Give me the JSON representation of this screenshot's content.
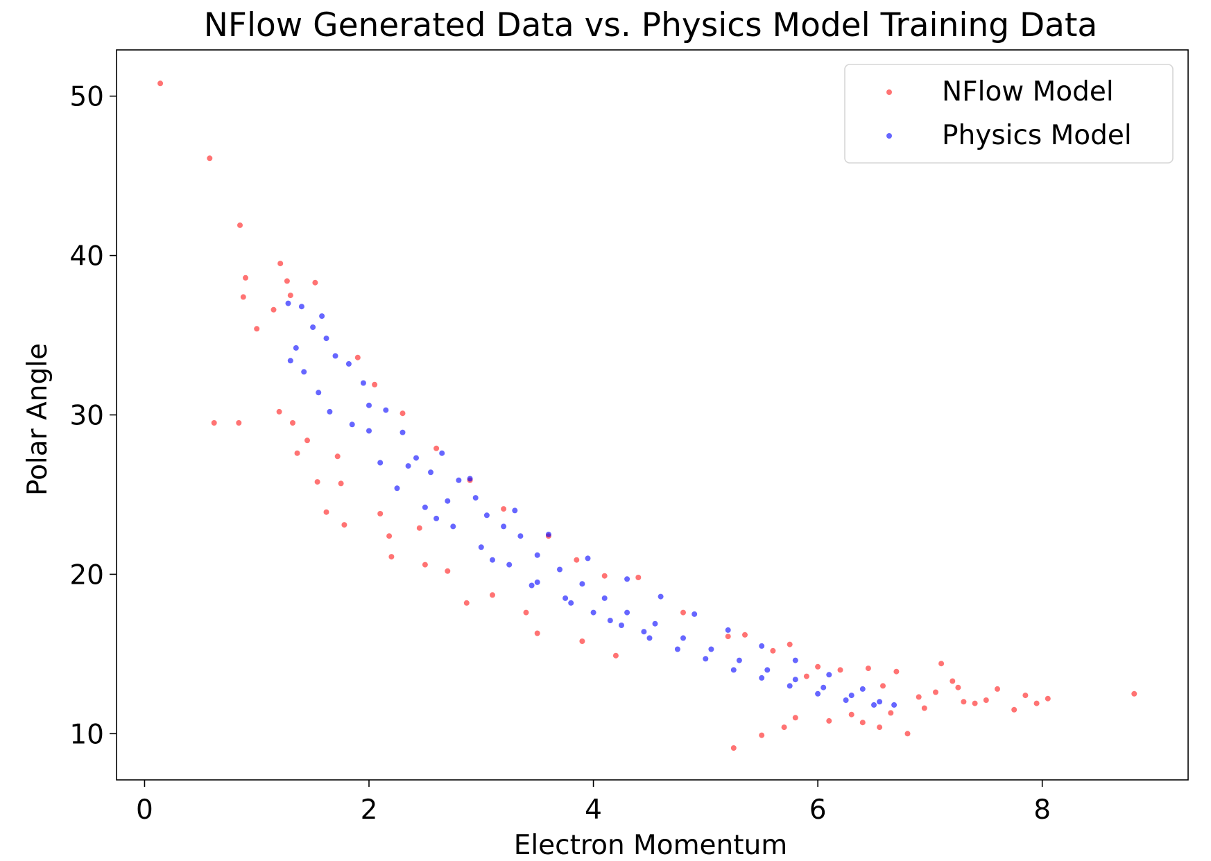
{
  "chart_data": {
    "type": "scatter",
    "title": "NFlow Generated Data vs. Physics Model Training Data",
    "xlabel": "Electron Momentum",
    "ylabel": "Polar Angle",
    "xlim": [
      -0.25,
      9.3
    ],
    "ylim": [
      7.1,
      52.9
    ],
    "xticks": [
      0,
      2,
      4,
      6,
      8
    ],
    "yticks": [
      10,
      20,
      30,
      40,
      50
    ],
    "grid": false,
    "legend_position": "top-right",
    "series": [
      {
        "name": "NFlow Model",
        "color": "#ff0000",
        "opacity": 0.55,
        "points": [
          [
            0.14,
            50.8
          ],
          [
            0.58,
            46.1
          ],
          [
            0.85,
            41.9
          ],
          [
            0.9,
            38.6
          ],
          [
            0.88,
            37.4
          ],
          [
            1.0,
            35.4
          ],
          [
            1.15,
            36.6
          ],
          [
            1.21,
            39.5
          ],
          [
            1.27,
            38.4
          ],
          [
            1.3,
            37.5
          ],
          [
            1.52,
            38.3
          ],
          [
            0.62,
            29.5
          ],
          [
            0.84,
            29.5
          ],
          [
            1.2,
            30.2
          ],
          [
            1.32,
            29.5
          ],
          [
            1.36,
            27.6
          ],
          [
            1.45,
            28.4
          ],
          [
            1.54,
            25.8
          ],
          [
            1.62,
            23.9
          ],
          [
            1.75,
            25.7
          ],
          [
            1.72,
            27.4
          ],
          [
            1.78,
            23.1
          ],
          [
            2.1,
            23.8
          ],
          [
            2.18,
            22.4
          ],
          [
            2.2,
            21.1
          ],
          [
            2.45,
            22.9
          ],
          [
            2.5,
            20.6
          ],
          [
            2.7,
            20.2
          ],
          [
            2.87,
            18.2
          ],
          [
            3.1,
            18.7
          ],
          [
            3.4,
            17.6
          ],
          [
            3.5,
            16.3
          ],
          [
            3.9,
            15.8
          ],
          [
            4.2,
            14.9
          ],
          [
            5.25,
            9.1
          ],
          [
            5.5,
            9.9
          ],
          [
            5.7,
            10.4
          ],
          [
            5.8,
            11.0
          ],
          [
            6.1,
            10.8
          ],
          [
            6.3,
            11.2
          ],
          [
            6.4,
            10.7
          ],
          [
            6.55,
            10.4
          ],
          [
            6.65,
            11.3
          ],
          [
            6.8,
            10.0
          ],
          [
            6.95,
            11.6
          ],
          [
            7.05,
            12.6
          ],
          [
            7.1,
            14.4
          ],
          [
            7.25,
            12.9
          ],
          [
            7.4,
            11.9
          ],
          [
            7.5,
            12.1
          ],
          [
            7.6,
            12.8
          ],
          [
            7.75,
            11.5
          ],
          [
            7.85,
            12.4
          ],
          [
            7.95,
            11.9
          ],
          [
            8.05,
            12.2
          ],
          [
            8.82,
            12.5
          ],
          [
            6.7,
            13.9
          ],
          [
            6.45,
            14.1
          ],
          [
            5.9,
            13.6
          ],
          [
            7.2,
            13.3
          ],
          [
            4.4,
            19.8
          ],
          [
            4.8,
            17.6
          ],
          [
            5.2,
            16.1
          ],
          [
            5.6,
            15.2
          ],
          [
            6.0,
            14.2
          ],
          [
            3.6,
            22.4
          ],
          [
            3.2,
            24.1
          ],
          [
            2.9,
            25.9
          ],
          [
            2.6,
            27.9
          ],
          [
            2.3,
            30.1
          ],
          [
            2.05,
            31.9
          ],
          [
            1.9,
            33.6
          ],
          [
            3.85,
            20.9
          ],
          [
            4.1,
            19.9
          ],
          [
            5.35,
            16.2
          ],
          [
            5.75,
            15.6
          ],
          [
            6.2,
            14.0
          ],
          [
            6.58,
            13.0
          ],
          [
            7.3,
            12.0
          ],
          [
            6.9,
            12.3
          ]
        ]
      },
      {
        "name": "Physics Model",
        "color": "#0000ff",
        "opacity": 0.6,
        "points": [
          [
            1.28,
            37.0
          ],
          [
            1.4,
            36.8
          ],
          [
            1.5,
            35.5
          ],
          [
            1.58,
            36.2
          ],
          [
            1.62,
            34.8
          ],
          [
            1.35,
            34.2
          ],
          [
            1.3,
            33.4
          ],
          [
            1.42,
            32.7
          ],
          [
            1.55,
            31.4
          ],
          [
            1.7,
            33.7
          ],
          [
            1.82,
            33.2
          ],
          [
            1.95,
            32.0
          ],
          [
            1.65,
            30.2
          ],
          [
            1.85,
            29.4
          ],
          [
            2.0,
            30.6
          ],
          [
            2.15,
            30.3
          ],
          [
            2.3,
            28.9
          ],
          [
            2.42,
            27.3
          ],
          [
            2.55,
            26.4
          ],
          [
            2.65,
            27.6
          ],
          [
            2.8,
            25.9
          ],
          [
            2.95,
            24.8
          ],
          [
            3.05,
            23.7
          ],
          [
            3.2,
            23.0
          ],
          [
            3.35,
            22.4
          ],
          [
            3.5,
            21.2
          ],
          [
            3.7,
            20.3
          ],
          [
            3.9,
            19.4
          ],
          [
            4.1,
            18.5
          ],
          [
            4.3,
            17.6
          ],
          [
            4.55,
            16.9
          ],
          [
            4.8,
            16.0
          ],
          [
            5.05,
            15.3
          ],
          [
            5.3,
            14.6
          ],
          [
            5.55,
            14.0
          ],
          [
            5.8,
            13.4
          ],
          [
            6.05,
            12.9
          ],
          [
            6.3,
            12.4
          ],
          [
            6.55,
            12.0
          ],
          [
            6.68,
            11.8
          ],
          [
            2.25,
            25.4
          ],
          [
            2.5,
            24.2
          ],
          [
            2.75,
            23.0
          ],
          [
            3.0,
            21.7
          ],
          [
            3.25,
            20.6
          ],
          [
            3.5,
            19.5
          ],
          [
            3.75,
            18.5
          ],
          [
            4.0,
            17.6
          ],
          [
            4.25,
            16.8
          ],
          [
            4.5,
            16.0
          ],
          [
            4.75,
            15.3
          ],
          [
            5.0,
            14.7
          ],
          [
            5.25,
            14.0
          ],
          [
            5.5,
            13.5
          ],
          [
            5.75,
            13.0
          ],
          [
            6.0,
            12.5
          ],
          [
            6.25,
            12.1
          ],
          [
            6.5,
            11.8
          ],
          [
            2.9,
            26.0
          ],
          [
            3.3,
            24.0
          ],
          [
            3.6,
            22.5
          ],
          [
            3.95,
            21.0
          ],
          [
            4.3,
            19.7
          ],
          [
            4.6,
            18.6
          ],
          [
            4.9,
            17.5
          ],
          [
            5.2,
            16.5
          ],
          [
            5.5,
            15.5
          ],
          [
            5.8,
            14.6
          ],
          [
            6.1,
            13.7
          ],
          [
            6.4,
            12.8
          ],
          [
            2.1,
            27.0
          ],
          [
            2.6,
            23.5
          ],
          [
            3.1,
            20.9
          ],
          [
            3.45,
            19.3
          ],
          [
            3.8,
            18.2
          ],
          [
            4.15,
            17.1
          ],
          [
            4.45,
            16.4
          ],
          [
            2.0,
            29.0
          ],
          [
            2.35,
            26.8
          ],
          [
            2.7,
            24.6
          ]
        ]
      }
    ]
  }
}
